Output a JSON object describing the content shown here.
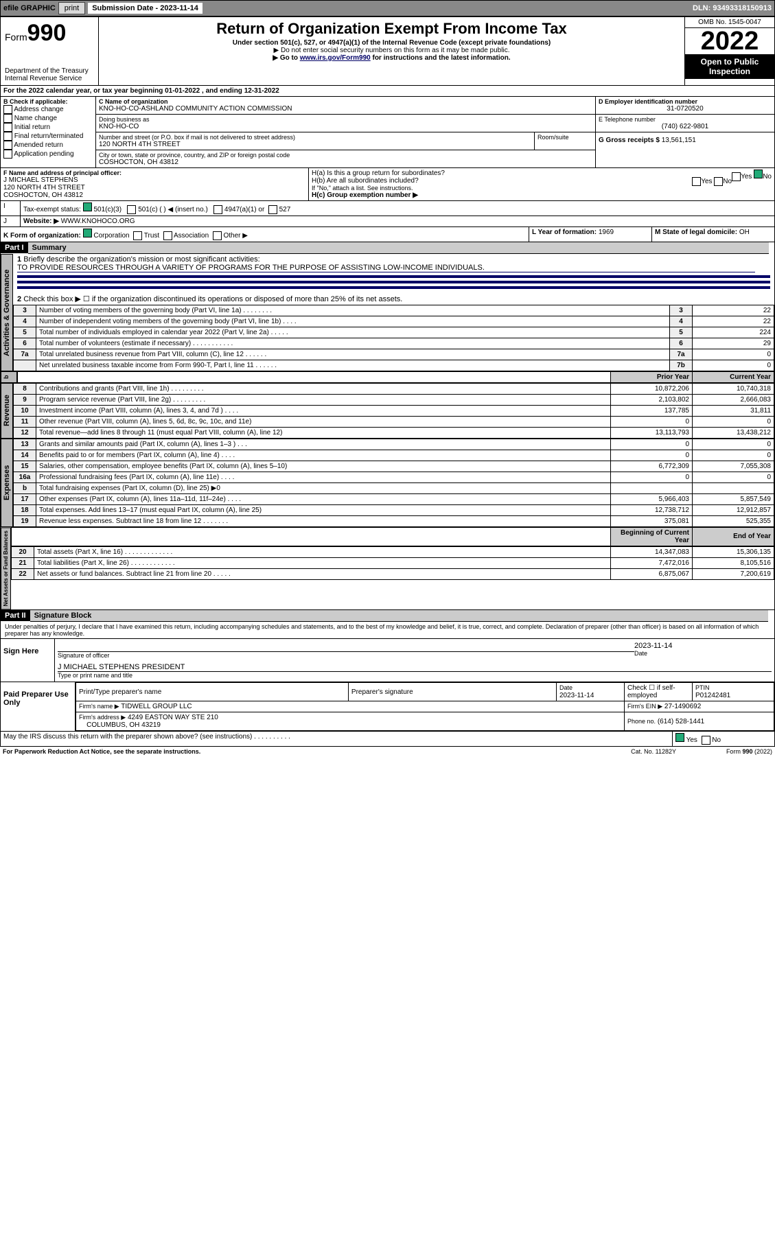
{
  "top": {
    "efile": "efile GRAPHIC",
    "print": "print",
    "sublabel": "Submission Date - ",
    "subdate": "2023-11-14",
    "dln": "DLN: 93493318150913"
  },
  "head": {
    "form": "Form",
    "num": "990",
    "dept": "Department of the Treasury\nInternal Revenue Service",
    "title": "Return of Organization Exempt From Income Tax",
    "sub1": "Under section 501(c), 527, or 4947(a)(1) of the Internal Revenue Code (except private foundations)",
    "sub2": "▶ Do not enter social security numbers on this form as it may be made public.",
    "sub3": "▶ Go to ",
    "link": "www.irs.gov/Form990",
    "sub3b": " for instructions and the latest information.",
    "omb": "OMB No. 1545-0047",
    "year": "2022",
    "open": "Open to Public Inspection"
  },
  "A": {
    "txt": "For the 2022 calendar year, or tax year beginning 01-01-2022  , and ending 12-31-2022"
  },
  "B": {
    "hdr": "B Check if applicable:",
    "items": [
      "Address change",
      "Name change",
      "Initial return",
      "Final return/terminated",
      "Amended return",
      "Application pending"
    ]
  },
  "C": {
    "lbl": "C Name of organization",
    "name": "KNO-HO-CO-ASHLAND COMMUNITY ACTION COMMISSION",
    "dba_l": "Doing business as",
    "dba": "KNO-HO-CO",
    "addr_l": "Number and street (or P.O. box if mail is not delivered to street address)",
    "addr": "120 NORTH 4TH STREET",
    "room_l": "Room/suite",
    "city_l": "City or town, state or province, country, and ZIP or foreign postal code",
    "city": "COSHOCTON, OH  43812"
  },
  "D": {
    "lbl": "D Employer identification number",
    "v": "31-0720520"
  },
  "E": {
    "lbl": "E Telephone number",
    "v": "(740) 622-9801"
  },
  "G": {
    "lbl": "G Gross receipts $",
    "v": "13,561,151"
  },
  "F": {
    "lbl": "F Name and address of principal officer:",
    "n": "J MICHAEL STEPHENS",
    "a1": "120 NORTH 4TH STREET",
    "a2": "COSHOCTON, OH  43812"
  },
  "H": {
    "a": "H(a)  Is this a group return for subordinates?",
    "b": "H(b)  Are all subordinates included?",
    "bnote": "If \"No,\" attach a list. See instructions.",
    "c": "H(c)  Group exemption number ▶",
    "yes": "Yes",
    "no": "No"
  },
  "I": {
    "lbl": "Tax-exempt status:",
    "c3": "501(c)(3)",
    "c": "501(c) (  ) ◀ (insert no.)",
    "a1": "4947(a)(1) or",
    "s527": "527"
  },
  "J": {
    "lbl": "Website: ▶",
    "v": "WWW.KNOHOCO.ORG"
  },
  "K": {
    "lbl": "K Form of organization:",
    "corp": "Corporation",
    "trust": "Trust",
    "assoc": "Association",
    "other": "Other ▶"
  },
  "L": {
    "lbl": "L Year of formation:",
    "v": "1969"
  },
  "M": {
    "lbl": "M State of legal domicile:",
    "v": "OH"
  },
  "p1": {
    "part": "Part I",
    "title": "Summary",
    "l1": "Briefly describe the organization's mission or most significant activities:",
    "l1v": "TO PROVIDE RESOURCES THROUGH A VARIETY OF PROGRAMS FOR THE PURPOSE OF ASSISTING LOW-INCOME INDIVIDUALS.",
    "l2": "Check this box ▶ ☐  if the organization discontinued its operations or disposed of more than 25% of its net assets.",
    "hdr_prior": "Prior Year",
    "hdr_curr": "Current Year",
    "hdr_begin": "Beginning of Current Year",
    "hdr_end": "End of Year",
    "tabs": {
      "ag": "Activities & Governance",
      "rev": "Revenue",
      "exp": "Expenses",
      "na": "Net Assets or Fund Balances"
    },
    "gov": [
      {
        "n": "3",
        "d": "Number of voting members of the governing body (Part VI, line 1a)  .   .   .   .   .   .   .   .",
        "bn": "3",
        "v": "22"
      },
      {
        "n": "4",
        "d": "Number of independent voting members of the governing body (Part VI, line 1b)  .   .   .   .",
        "bn": "4",
        "v": "22"
      },
      {
        "n": "5",
        "d": "Total number of individuals employed in calendar year 2022 (Part V, line 2a)  .   .   .   .   .",
        "bn": "5",
        "v": "224"
      },
      {
        "n": "6",
        "d": "Total number of volunteers (estimate if necessary)  .   .   .   .   .   .   .   .   .   .   .",
        "bn": "6",
        "v": "29"
      },
      {
        "n": "7a",
        "d": "Total unrelated business revenue from Part VIII, column (C), line 12  .   .   .   .   .   .",
        "bn": "7a",
        "v": "0"
      },
      {
        "n": "",
        "d": "Net unrelated business taxable income from Form 990-T, Part I, line 11  .   .   .   .   .   .",
        "bn": "7b",
        "v": "0"
      }
    ],
    "rev": [
      {
        "n": "8",
        "d": "Contributions and grants (Part VIII, line 1h)  .   .   .   .   .   .   .   .   .",
        "p": "10,872,206",
        "c": "10,740,318"
      },
      {
        "n": "9",
        "d": "Program service revenue (Part VIII, line 2g)  .   .   .   .   .   .   .   .   .",
        "p": "2,103,802",
        "c": "2,666,083"
      },
      {
        "n": "10",
        "d": "Investment income (Part VIII, column (A), lines 3, 4, and 7d )  .   .   .   .",
        "p": "137,785",
        "c": "31,811"
      },
      {
        "n": "11",
        "d": "Other revenue (Part VIII, column (A), lines 5, 6d, 8c, 9c, 10c, and 11e)",
        "p": "0",
        "c": "0"
      },
      {
        "n": "12",
        "d": "Total revenue—add lines 8 through 11 (must equal Part VIII, column (A), line 12)",
        "p": "13,113,793",
        "c": "13,438,212"
      }
    ],
    "exp": [
      {
        "n": "13",
        "d": "Grants and similar amounts paid (Part IX, column (A), lines 1–3 )  .   .   .",
        "p": "0",
        "c": "0"
      },
      {
        "n": "14",
        "d": "Benefits paid to or for members (Part IX, column (A), line 4)  .   .   .   .",
        "p": "0",
        "c": "0"
      },
      {
        "n": "15",
        "d": "Salaries, other compensation, employee benefits (Part IX, column (A), lines 5–10)",
        "p": "6,772,309",
        "c": "7,055,308"
      },
      {
        "n": "16a",
        "d": "Professional fundraising fees (Part IX, column (A), line 11e)  .   .   .   .",
        "p": "0",
        "c": "0"
      },
      {
        "n": "b",
        "d": "Total fundraising expenses (Part IX, column (D), line 25) ▶0",
        "p": "",
        "c": ""
      },
      {
        "n": "17",
        "d": "Other expenses (Part IX, column (A), lines 11a–11d, 11f–24e)  .   .   .   .",
        "p": "5,966,403",
        "c": "5,857,549"
      },
      {
        "n": "18",
        "d": "Total expenses. Add lines 13–17 (must equal Part IX, column (A), line 25)",
        "p": "12,738,712",
        "c": "12,912,857"
      },
      {
        "n": "19",
        "d": "Revenue less expenses. Subtract line 18 from line 12  .   .   .   .   .   .   .",
        "p": "375,081",
        "c": "525,355"
      }
    ],
    "na": [
      {
        "n": "20",
        "d": "Total assets (Part X, line 16)  .   .   .   .   .   .   .   .   .   .   .   .   .",
        "p": "14,347,083",
        "c": "15,306,135"
      },
      {
        "n": "21",
        "d": "Total liabilities (Part X, line 26)  .   .   .   .   .   .   .   .   .   .   .   .",
        "p": "7,472,016",
        "c": "8,105,516"
      },
      {
        "n": "22",
        "d": "Net assets or fund balances. Subtract line 21 from line 20  .   .   .   .   .",
        "p": "6,875,067",
        "c": "7,200,619"
      }
    ]
  },
  "p2": {
    "part": "Part II",
    "title": "Signature Block",
    "decl": "Under penalties of perjury, I declare that I have examined this return, including accompanying schedules and statements, and to the best of my knowledge and belief, it is true, correct, and complete. Declaration of preparer (other than officer) is based on all information of which preparer has any knowledge.",
    "sign": "Sign Here",
    "sig_l": "Signature of officer",
    "date_l": "Date",
    "date": "2023-11-14",
    "name": "J MICHAEL STEPHENS PRESIDENT",
    "name_l": "Type or print name and title",
    "paid": "Paid Preparer Use Only",
    "pt_l": "Print/Type preparer's name",
    "ps_l": "Preparer's signature",
    "pd_l": "Date",
    "pd": "2023-11-14",
    "chk_l": "Check ☐ if self-employed",
    "ptin_l": "PTIN",
    "ptin": "P01242481",
    "firm_l": "Firm's name  ▶",
    "firm": "TIDWELL GROUP LLC",
    "ein_l": "Firm's EIN ▶",
    "ein": "27-1490692",
    "fa_l": "Firm's address ▶",
    "fa1": "4249 EASTON WAY STE 210",
    "fa2": "COLUMBUS, OH  43219",
    "ph_l": "Phone no.",
    "ph": "(614) 528-1441"
  },
  "foot": {
    "q": "May the IRS discuss this return with the preparer shown above? (see instructions)  .    .    .    .    .    .    .   .    .   .",
    "yes": "Yes",
    "no": "No",
    "pra": "For Paperwork Reduction Act Notice, see the separate instructions.",
    "cat": "Cat. No. 11282Y",
    "form": "Form 990 (2022)"
  }
}
